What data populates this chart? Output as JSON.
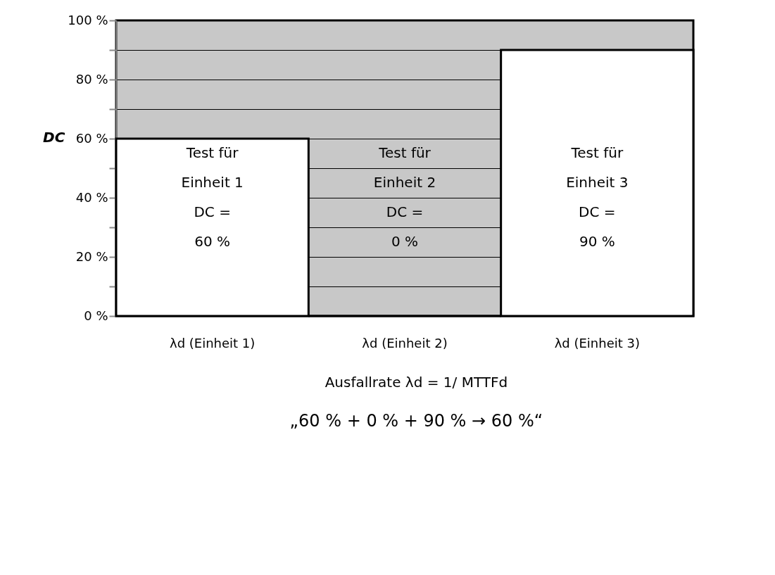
{
  "chart_data": {
    "type": "bar",
    "ylabel": "DC",
    "categories": [
      "λd (Einheit 1)",
      "λd (Einheit 2)",
      "λd (Einheit 3)"
    ],
    "series": [
      {
        "color": "#ffffff",
        "values": [
          60,
          0,
          90
        ]
      }
    ],
    "ylim": [
      0,
      100
    ],
    "yticks": [
      {
        "value": 0,
        "label": "0 %"
      },
      {
        "value": 10,
        "label": null
      },
      {
        "value": 20,
        "label": "20 %"
      },
      {
        "value": 30,
        "label": null
      },
      {
        "value": 40,
        "label": "40 %"
      },
      {
        "value": 50,
        "label": null
      },
      {
        "value": 60,
        "label": "60 %"
      },
      {
        "value": 70,
        "label": null
      },
      {
        "value": 80,
        "label": "80 %"
      },
      {
        "value": 90,
        "label": null
      },
      {
        "value": 100,
        "label": "100 %"
      }
    ],
    "grid": "y",
    "legend": false,
    "annotations": [
      "Test für\nEinheit 1\nDC  =\n60 %",
      "Test für\nEinheit 2\nDC  =\n0 %",
      "Test für\nEinheit 3\nDC  =\n90 %",
      "Ausfallrate  λd = 1/ MTTFd",
      "„60 %  + 0 %  + 90 % → 60 %“"
    ]
  }
}
